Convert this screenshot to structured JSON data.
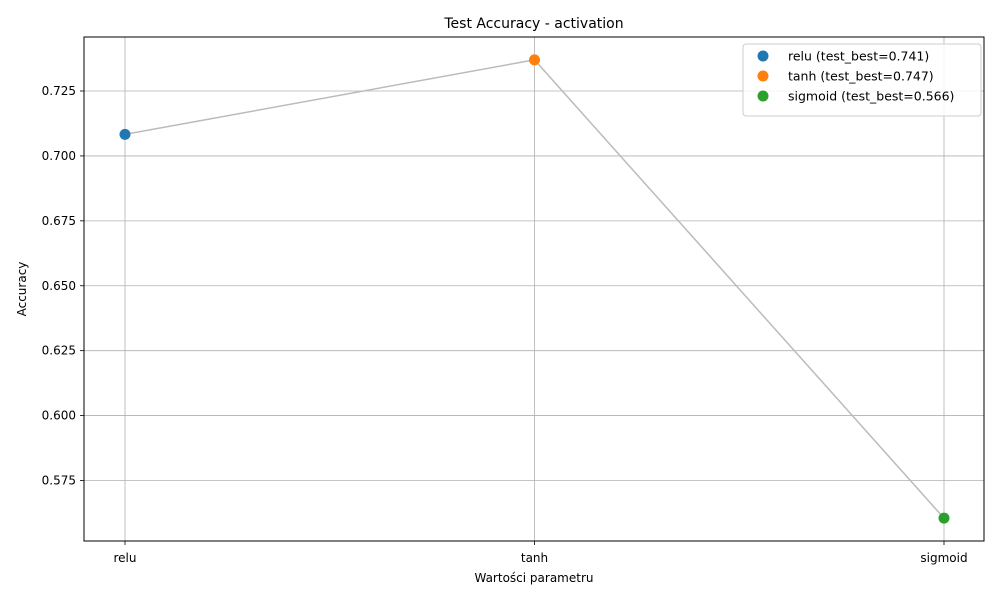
{
  "chart_data": {
    "type": "line",
    "title": "Test Accuracy - activation",
    "xlabel": "Wartości parametru",
    "ylabel": "Accuracy",
    "categories": [
      "relu",
      "tanh",
      "sigmoid"
    ],
    "values": [
      0.7083,
      0.737,
      0.5605
    ],
    "point_colors": [
      "#1f77b4",
      "#ff7f0e",
      "#2ca02c"
    ],
    "line_color": "#bbbbbb",
    "ylim": [
      0.5517,
      0.7458
    ],
    "yticks": [
      0.575,
      0.6,
      0.625,
      0.65,
      0.675,
      0.7,
      0.725
    ],
    "ytick_labels": [
      "0.575",
      "0.600",
      "0.625",
      "0.650",
      "0.675",
      "0.700",
      "0.725"
    ],
    "grid": true,
    "legend_position": "top-right",
    "legend": [
      {
        "label": "relu (test_best=0.741)",
        "color": "#1f77b4"
      },
      {
        "label": "tanh (test_best=0.747)",
        "color": "#ff7f0e"
      },
      {
        "label": "sigmoid (test_best=0.566)",
        "color": "#2ca02c"
      }
    ]
  }
}
